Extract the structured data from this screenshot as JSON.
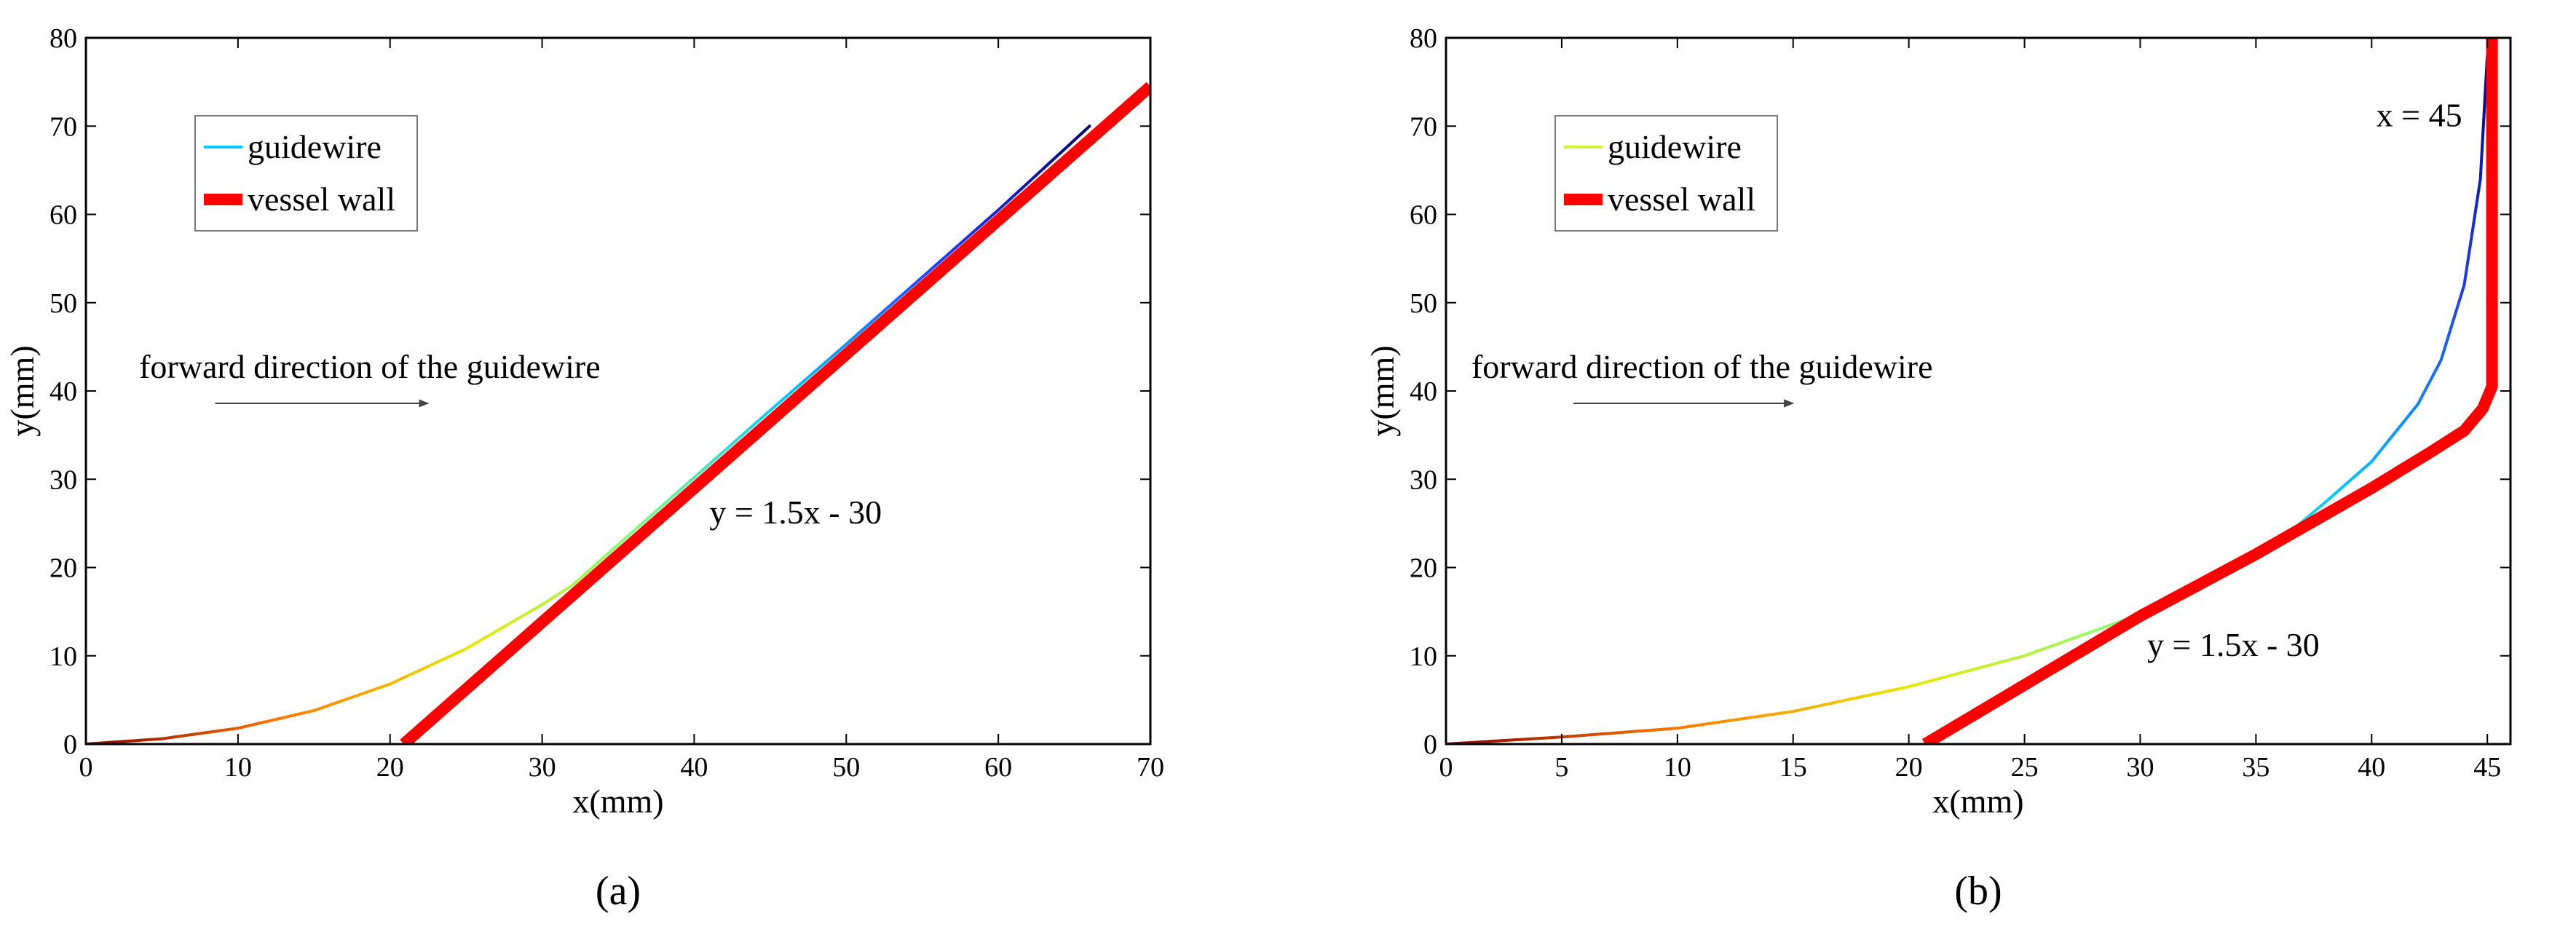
{
  "chart_data": [
    {
      "type": "line",
      "panel_label": "(a)",
      "xlabel": "x(mm)",
      "ylabel": "y(mm)",
      "xlim": [
        0,
        70
      ],
      "ylim": [
        0,
        80
      ],
      "xticks": [
        0,
        10,
        20,
        30,
        40,
        50,
        60,
        70
      ],
      "yticks": [
        0,
        10,
        20,
        30,
        40,
        50,
        60,
        70,
        80
      ],
      "grid": false,
      "legend_position": "top-left",
      "series": [
        {
          "name": "guidewire",
          "legend_color": "#00c8ff",
          "gradient": [
            "#8b0000",
            "#ff7a00",
            "#e8e800",
            "#7fff7f",
            "#00c8ff",
            "#1f3cff",
            "#00007f"
          ],
          "x": [
            0,
            5,
            10,
            15,
            20,
            25,
            30,
            32,
            35,
            40,
            45,
            50,
            55,
            60,
            66
          ],
          "y": [
            0,
            0.6,
            1.8,
            3.8,
            6.8,
            10.8,
            15.8,
            18,
            22.6,
            30.2,
            37.8,
            45.3,
            52.9,
            60.5,
            70
          ]
        },
        {
          "name": "vessel wall",
          "color": "#ff0000",
          "x": [
            20.9,
            70
          ],
          "y": [
            0,
            74.5
          ]
        }
      ],
      "annotations": [
        {
          "text": "forward direction of the guidewire",
          "x": 3.5,
          "y": 41.5
        },
        {
          "text": "y = 1.5x - 30",
          "x": 41,
          "y": 25
        }
      ],
      "arrow": {
        "x1": 8.5,
        "y1": 38.6,
        "x2": 22.5,
        "y2": 38.6
      }
    },
    {
      "type": "line",
      "panel_label": "(b)",
      "xlabel": "x(mm)",
      "ylabel": "y(mm)",
      "xlim": [
        0,
        46
      ],
      "ylim": [
        0,
        80
      ],
      "xticks": [
        0,
        5,
        10,
        15,
        20,
        25,
        30,
        35,
        40,
        45
      ],
      "yticks": [
        0,
        10,
        20,
        30,
        40,
        50,
        60,
        70,
        80
      ],
      "grid": false,
      "legend_position": "top-left",
      "series": [
        {
          "name": "guidewire",
          "legend_color": "#d6f030",
          "gradient": [
            "#8b0000",
            "#ff7a00",
            "#e8e800",
            "#7fff7f",
            "#00c8ff",
            "#1f3cff",
            "#00007f"
          ],
          "x": [
            0,
            5,
            10,
            15,
            20,
            25,
            30,
            33,
            36,
            38,
            40,
            42,
            43,
            44,
            44.7,
            45
          ],
          "y": [
            0,
            0.8,
            1.8,
            3.7,
            6.5,
            10,
            14.7,
            18.5,
            23,
            27.4,
            32,
            38.5,
            43.5,
            52,
            64,
            78
          ]
        },
        {
          "name": "vessel wall",
          "color": "#ff0000",
          "x": [
            20.7,
            30,
            35,
            40,
            42.5,
            44,
            44.8,
            45.2,
            45.2
          ],
          "y": [
            0,
            14.5,
            21.5,
            29,
            33,
            35.5,
            38,
            40.5,
            80
          ]
        }
      ],
      "annotations": [
        {
          "text": "forward direction of the guidewire",
          "x": 1.1,
          "y": 41.5
        },
        {
          "text": "y = 1.5x - 30",
          "x": 30.3,
          "y": 10
        },
        {
          "text": "x = 45",
          "x": 40.2,
          "y": 70
        }
      ],
      "arrow": {
        "x1": 5.5,
        "y1": 38.6,
        "x2": 15,
        "y2": 38.6
      }
    }
  ]
}
